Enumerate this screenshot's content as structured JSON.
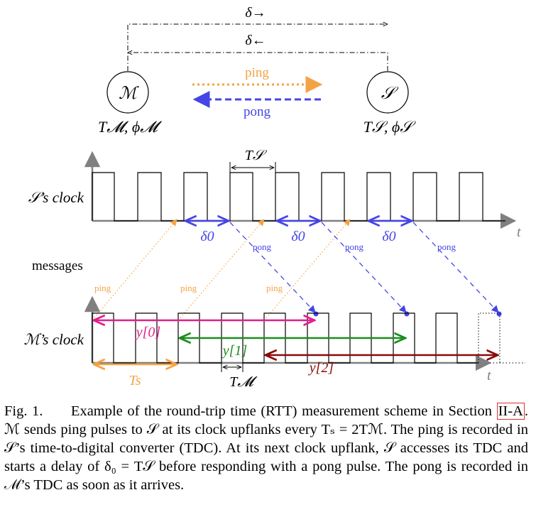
{
  "nodes": {
    "master": {
      "symbol": "ℳ",
      "label": "T𝓜, ϕ𝓜"
    },
    "slave": {
      "symbol": "𝒮",
      "label": "T𝒮, ϕ𝒮"
    }
  },
  "top_delays": {
    "forward": "δ→",
    "backward": "δ←"
  },
  "top_messages": {
    "ping": "ping",
    "pong": "pong"
  },
  "slave_clock": {
    "label": "𝒮’s clock",
    "period_label": "T𝒮",
    "axis_label": "t",
    "delay_label": "δ0"
  },
  "messages_label": "messages",
  "master_clock": {
    "label": "ℳ’s clock",
    "period_label": "T𝓜",
    "axis_label": "t",
    "ping_period_label": "Ts"
  },
  "small_labels": {
    "ping": "ping",
    "pong": "pong"
  },
  "measurements": [
    "y[0]",
    "y[1]",
    "y[2]"
  ],
  "colors": {
    "ping": "#f4a344",
    "pong": "#4545e6",
    "y0": "#e0208e",
    "y1": "#1b8f1b",
    "y2": "#8a0a0a",
    "axis": "#808080"
  },
  "caption": {
    "prefix": "Fig. 1.",
    "text1": "Example of the round-trip time (RTT) measurement scheme in Section",
    "ref": "II-A",
    "text2": ". ℳ sends ping pulses to 𝒮 at its clock upflanks every Tₛ = 2Tℳ. The ping is recorded in 𝒮’s time-to-digital converter (TDC). At its next clock upflank, 𝒮 accesses its TDC and starts a delay of δ₀ = T𝒮 before responding with a pong pulse. The pong is recorded in ℳ’s TDC as soon as it arrives."
  }
}
